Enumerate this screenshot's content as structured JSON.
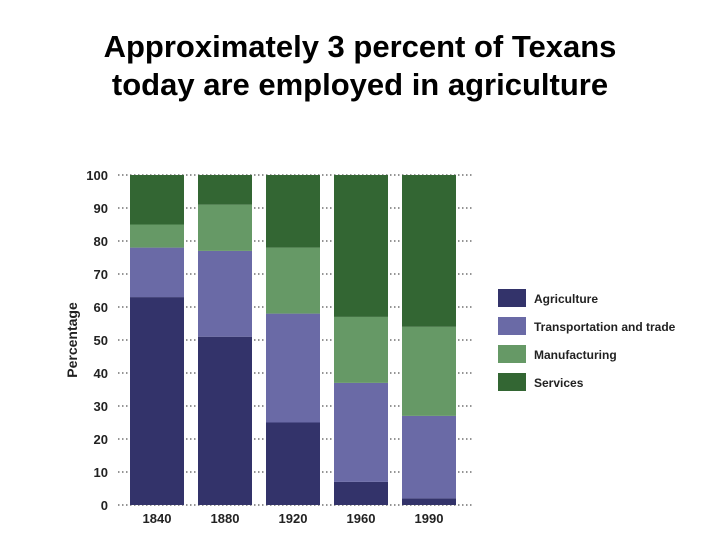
{
  "slide": {
    "title_line1": "Approximately 3 percent of Texans",
    "title_line2": "today are employed in agriculture"
  },
  "chart_data": {
    "type": "bar",
    "stacked": true,
    "categories": [
      "1840",
      "1880",
      "1920",
      "1960",
      "1990"
    ],
    "ylabel": "Percentage",
    "xlabel": "",
    "ylim": [
      0,
      100
    ],
    "yticks": [
      0,
      10,
      20,
      30,
      40,
      50,
      60,
      70,
      80,
      90,
      100
    ],
    "grid": true,
    "legend_position": "right",
    "series": [
      {
        "name": "Agriculture",
        "color": "#33336a",
        "values": [
          63,
          51,
          25,
          7,
          2
        ]
      },
      {
        "name": "Transportation and trade",
        "color": "#6a6aa6",
        "values": [
          15,
          26,
          33,
          30,
          25
        ]
      },
      {
        "name": "Manufacturing",
        "color": "#669966",
        "values": [
          7,
          14,
          20,
          20,
          27
        ]
      },
      {
        "name": "Services",
        "color": "#336633",
        "values": [
          15,
          9,
          22,
          43,
          46
        ]
      }
    ],
    "legend_order": [
      "Agriculture",
      "Transportation and trade",
      "Manufacturing",
      "Services"
    ]
  }
}
